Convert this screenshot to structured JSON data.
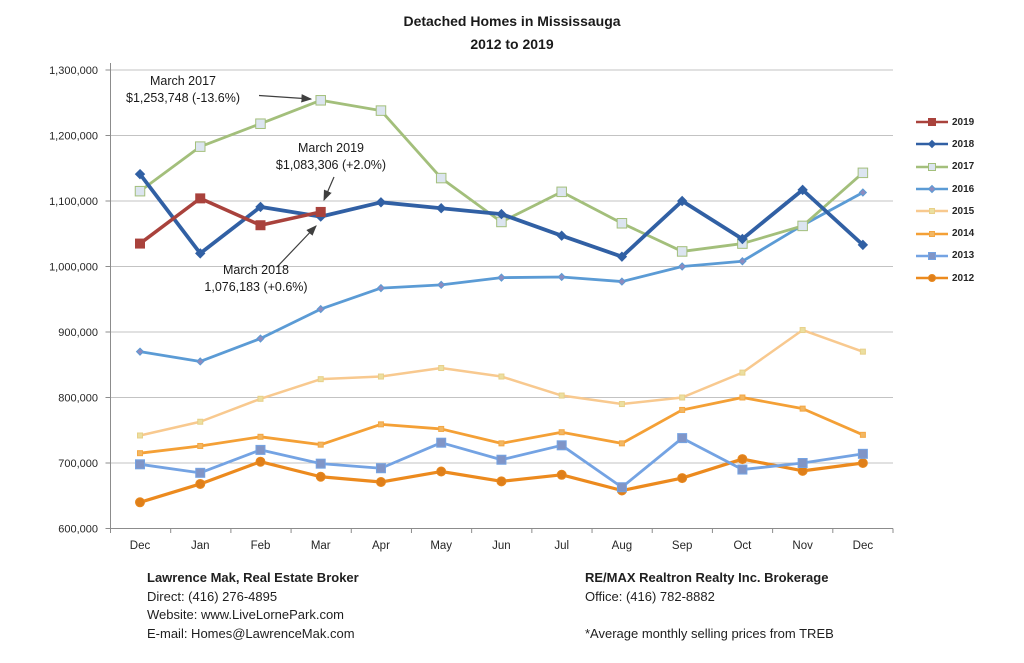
{
  "title": {
    "line1": "Detached Homes in Mississauga",
    "line2": "2012 to 2019"
  },
  "chart_data": {
    "type": "line",
    "title": "Detached Homes in Mississauga 2012 to 2019",
    "xlabel": "",
    "ylabel": "",
    "ylim": [
      600000,
      1300000
    ],
    "ytick_step": 100000,
    "grid": true,
    "legend_position": "right",
    "categories": [
      "Dec",
      "Jan",
      "Feb",
      "Mar",
      "Apr",
      "May",
      "Jun",
      "Jul",
      "Aug",
      "Sep",
      "Oct",
      "Nov",
      "Dec"
    ],
    "series": [
      {
        "name": "2019",
        "color": "#A9423C",
        "marker": "square",
        "marker_fill": "#A9423C",
        "marker_stroke": "#A9423C",
        "line_width": 3.5,
        "marker_size": 9,
        "values": [
          1035000,
          1104000,
          1063000,
          1083306,
          null,
          null,
          null,
          null,
          null,
          null,
          null,
          null,
          null
        ]
      },
      {
        "name": "2018",
        "color": "#3160A4",
        "marker": "diamond",
        "marker_fill": "#3160A4",
        "marker_stroke": "#3160A4",
        "line_width": 3.8,
        "marker_size": 9,
        "values": [
          1141000,
          1020000,
          1091000,
          1076183,
          1098000,
          1089000,
          1080000,
          1047000,
          1015000,
          1100000,
          1042000,
          1117000,
          1033000
        ]
      },
      {
        "name": "2017",
        "color": "#A3BF7B",
        "marker": "square",
        "marker_fill": "#DCE5F0",
        "marker_stroke": "#A3BF7B",
        "line_width": 2.8,
        "marker_size": 9.5,
        "values": [
          1115000,
          1183000,
          1218000,
          1253748,
          1238000,
          1135000,
          1068000,
          1114000,
          1066000,
          1023000,
          1035000,
          1062000,
          1143000
        ]
      },
      {
        "name": "2016",
        "color": "#5B9BD5",
        "marker": "diamond",
        "marker_fill": "#8E8BBE",
        "marker_stroke": "#5B9BD5",
        "line_width": 2.8,
        "marker_size": 7,
        "values": [
          870000,
          855000,
          890000,
          935000,
          967000,
          972000,
          983000,
          984000,
          977000,
          1000000,
          1008000,
          1063000,
          1113000
        ]
      },
      {
        "name": "2015",
        "color": "#F8C98F",
        "marker": "square",
        "marker_fill": "#EBDFA0",
        "marker_stroke": "#E8D089",
        "line_width": 2.5,
        "marker_size": 5,
        "values": [
          742000,
          763000,
          798000,
          828000,
          832000,
          845000,
          832000,
          803000,
          790000,
          800000,
          838000,
          903000,
          870000
        ]
      },
      {
        "name": "2014",
        "color": "#F4A036",
        "marker": "square",
        "marker_fill": "#F2B763",
        "marker_stroke": "#F4A743",
        "line_width": 2.8,
        "marker_size": 5,
        "values": [
          715000,
          726000,
          740000,
          728000,
          759000,
          752000,
          730000,
          747000,
          730000,
          781000,
          800000,
          783000,
          743000
        ]
      },
      {
        "name": "2013",
        "color": "#74A3E3",
        "marker": "square",
        "marker_fill": "#8095C7",
        "marker_stroke": "#74A3E3",
        "line_width": 2.8,
        "marker_size": 9,
        "values": [
          698000,
          685000,
          720000,
          699000,
          692000,
          731000,
          705000,
          727000,
          663000,
          738000,
          690000,
          700000,
          714000
        ]
      },
      {
        "name": "2012",
        "color": "#EC8A1E",
        "marker": "circle",
        "marker_fill": "#DF7F1A",
        "marker_stroke": "#E8891F",
        "line_width": 3.2,
        "marker_size": 9,
        "values": [
          640000,
          668000,
          702000,
          679000,
          671000,
          687000,
          672000,
          682000,
          658000,
          677000,
          706000,
          688000,
          700000
        ]
      }
    ]
  },
  "annotations": [
    {
      "line1": "March 2017",
      "line2": "$1,253,748 (-13.6%)"
    },
    {
      "line1": "March 2019",
      "line2": "$1,083,306 (+2.0%)"
    },
    {
      "line1": "March 2018",
      "line2": "1,076,183 (+0.6%)"
    }
  ],
  "footer": {
    "left": {
      "title": "Lawrence Mak, Real Estate Broker",
      "line1": "Direct:  (416) 276-4895",
      "line2": "Website:  www.LiveLornePark.com",
      "line3": "E-mail:  Homes@LawrenceMak.com"
    },
    "right": {
      "title": "RE/MAX Realtron Realty Inc. Brokerage",
      "line1": "Office: (416) 782-8882",
      "note": "*Average monthly selling prices from TREB"
    }
  }
}
